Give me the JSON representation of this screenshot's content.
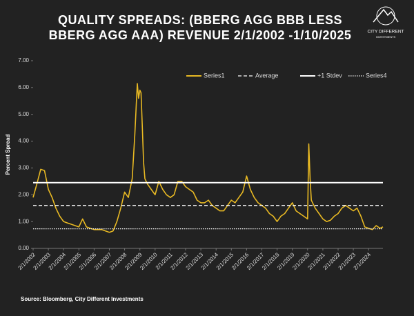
{
  "chart_data": {
    "type": "line",
    "title": "QUALITY SPREADS: (BBERG AGG BBB LESS BBERG AGG AAA) REVENUE 2/1/2002 -1/10/2025",
    "y_label": "Percent Spread",
    "source": "Source: Bloomberg, City Different Investments",
    "x": [
      "2/1/2002",
      "5/1/2002",
      "8/1/2002",
      "11/1/2002",
      "2/1/2003",
      "5/1/2003",
      "8/1/2003",
      "11/1/2003",
      "2/1/2004",
      "5/1/2004",
      "8/1/2004",
      "11/1/2004",
      "2/1/2005",
      "5/1/2005",
      "8/1/2005",
      "11/1/2005",
      "2/1/2006",
      "5/1/2006",
      "8/1/2006",
      "11/1/2006",
      "2/1/2007",
      "5/1/2007",
      "8/1/2007",
      "11/1/2007",
      "2/1/2008",
      "5/1/2008",
      "8/1/2008",
      "10/1/2008",
      "11/1/2008",
      "12/1/2008",
      "1/1/2009",
      "2/1/2009",
      "3/1/2009",
      "4/1/2009",
      "5/1/2009",
      "6/1/2009",
      "8/1/2009",
      "11/1/2009",
      "2/1/2010",
      "5/1/2010",
      "8/1/2010",
      "11/1/2010",
      "2/1/2011",
      "5/1/2011",
      "8/1/2011",
      "11/1/2011",
      "2/1/2012",
      "5/1/2012",
      "8/1/2012",
      "11/1/2012",
      "2/1/2013",
      "5/1/2013",
      "8/1/2013",
      "11/1/2013",
      "2/1/2014",
      "5/1/2014",
      "8/1/2014",
      "11/1/2014",
      "2/1/2015",
      "5/1/2015",
      "8/1/2015",
      "11/1/2015",
      "2/1/2016",
      "5/1/2016",
      "8/1/2016",
      "11/1/2016",
      "2/1/2017",
      "5/1/2017",
      "8/1/2017",
      "11/1/2017",
      "2/1/2018",
      "5/1/2018",
      "8/1/2018",
      "11/1/2018",
      "2/1/2019",
      "5/1/2019",
      "8/1/2019",
      "11/1/2019",
      "2/1/2020",
      "3/1/2020",
      "4/1/2020",
      "5/1/2020",
      "8/1/2020",
      "11/1/2020",
      "2/1/2021",
      "5/1/2021",
      "8/1/2021",
      "11/1/2021",
      "2/1/2022",
      "5/1/2022",
      "8/1/2022",
      "11/1/2022",
      "2/1/2023",
      "5/1/2023",
      "8/1/2023",
      "11/1/2023",
      "2/1/2024",
      "5/1/2024",
      "8/1/2024",
      "11/1/2024",
      "1/10/2025"
    ],
    "series": [
      {
        "name": "Series1",
        "color": "#e8b923",
        "style": "solid",
        "values": [
          1.9,
          2.4,
          2.95,
          2.9,
          2.2,
          1.9,
          1.5,
          1.2,
          1.0,
          0.95,
          0.9,
          0.85,
          0.8,
          1.1,
          0.8,
          0.75,
          0.7,
          0.7,
          0.7,
          0.65,
          0.6,
          0.65,
          1.0,
          1.5,
          2.1,
          1.9,
          2.6,
          4.2,
          5.2,
          6.15,
          5.6,
          5.9,
          5.8,
          4.5,
          3.2,
          2.6,
          2.4,
          2.2,
          2.0,
          2.5,
          2.2,
          2.0,
          1.9,
          2.0,
          2.5,
          2.5,
          2.3,
          2.2,
          2.1,
          1.8,
          1.7,
          1.7,
          1.8,
          1.6,
          1.5,
          1.4,
          1.4,
          1.6,
          1.8,
          1.7,
          1.9,
          2.1,
          2.7,
          2.2,
          1.9,
          1.7,
          1.6,
          1.5,
          1.3,
          1.2,
          1.0,
          1.2,
          1.3,
          1.5,
          1.7,
          1.4,
          1.3,
          1.2,
          1.1,
          3.9,
          2.6,
          1.8,
          1.5,
          1.3,
          1.1,
          1.0,
          1.05,
          1.2,
          1.3,
          1.5,
          1.6,
          1.5,
          1.4,
          1.5,
          1.2,
          0.8,
          0.75,
          0.7,
          0.85,
          0.75,
          0.8
        ]
      },
      {
        "name": "Average",
        "color": "#ffffff",
        "style": "dashed",
        "value": 1.6
      },
      {
        "name": "+1 Stdev",
        "color": "#ffffff",
        "style": "solid",
        "value": 2.45
      },
      {
        "name": "Series4",
        "color": "#ffffff",
        "style": "dotted",
        "value": 0.73
      }
    ],
    "xlim": [
      "2/1/2002",
      "1/10/2025"
    ],
    "xticks": [
      "2/1/2002",
      "2/1/2003",
      "2/1/2004",
      "2/1/2005",
      "2/1/2006",
      "2/1/2007",
      "2/1/2008",
      "2/1/2009",
      "2/1/2010",
      "2/1/2011",
      "2/1/2012",
      "2/1/2013",
      "2/1/2014",
      "2/1/2015",
      "2/1/2016",
      "2/1/2017",
      "2/1/2018",
      "2/1/2019",
      "2/1/2020",
      "2/1/2021",
      "2/1/2022",
      "2/1/2023",
      "2/1/2024"
    ],
    "ylim": [
      0,
      7
    ],
    "yticks": [
      {
        "value": 0,
        "label": "0.00"
      },
      {
        "value": 1,
        "label": "1.00"
      },
      {
        "value": 2,
        "label": "2.00"
      },
      {
        "value": 3,
        "label": "3.00"
      },
      {
        "value": 4,
        "label": "4.00"
      },
      {
        "value": 5,
        "label": "5.00"
      },
      {
        "value": 6,
        "label": "6.00"
      },
      {
        "value": 7,
        "label": "7.00"
      }
    ],
    "legend": "top-right"
  },
  "logo": {
    "name": "CITY DIFFERENT",
    "tagline": "INVESTMENTS"
  }
}
